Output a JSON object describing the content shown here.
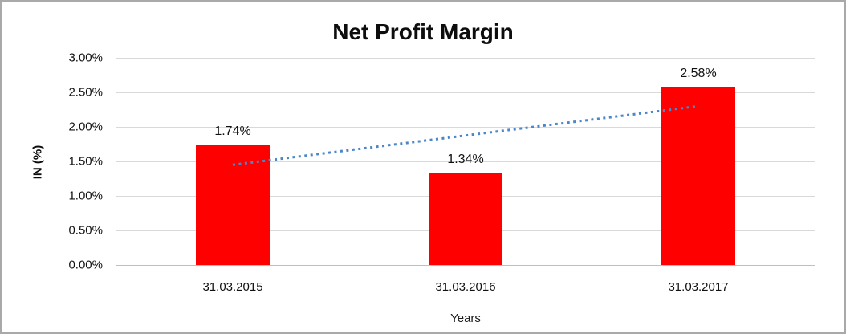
{
  "chart_data": {
    "type": "bar",
    "title": "Net Profit Margin",
    "xlabel": "Years",
    "ylabel": "IN (%)",
    "categories": [
      "31.03.2015",
      "31.03.2016",
      "31.03.2017"
    ],
    "values": [
      1.74,
      1.34,
      2.58
    ],
    "data_labels": [
      "1.74%",
      "1.34%",
      "2.58%"
    ],
    "ylim": [
      0,
      3.0
    ],
    "ytick_labels": [
      "3.00%",
      "2.50%",
      "2.00%",
      "1.50%",
      "1.00%",
      "0.50%",
      "0.00%"
    ],
    "ytick_values": [
      3.0,
      2.5,
      2.0,
      1.5,
      1.0,
      0.5,
      0.0
    ],
    "grid": true,
    "legend": "none",
    "bar_color": "#ff0000",
    "trendline": {
      "style": "dotted",
      "color": "#4a86c8",
      "start_value": 1.45,
      "end_value": 2.3
    }
  }
}
